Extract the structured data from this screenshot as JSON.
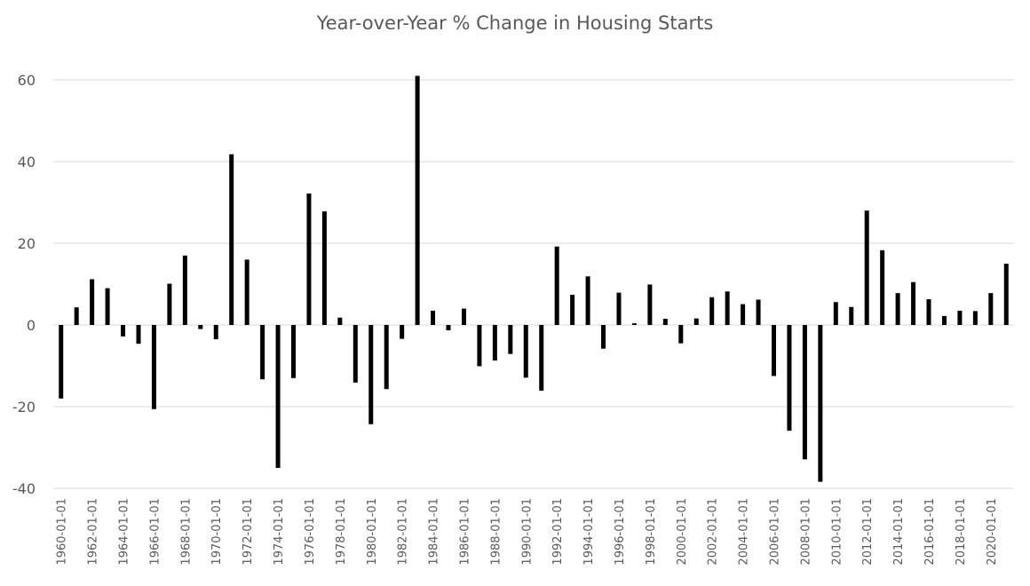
{
  "chart_data": {
    "type": "bar",
    "title": "Year-over-Year % Change in Housing Starts",
    "xlabel": "",
    "ylabel": "",
    "ylim": [
      -40,
      60
    ],
    "yticks": [
      "-40",
      "-20",
      "0",
      "20",
      "40",
      "60"
    ],
    "grid": true,
    "legend": "none",
    "bar_color": "#000000",
    "categories": [
      "1960-01-01",
      "1961-01-01",
      "1962-01-01",
      "1963-01-01",
      "1964-01-01",
      "1965-01-01",
      "1966-01-01",
      "1967-01-01",
      "1968-01-01",
      "1969-01-01",
      "1970-01-01",
      "1971-01-01",
      "1972-01-01",
      "1973-01-01",
      "1974-01-01",
      "1975-01-01",
      "1976-01-01",
      "1977-01-01",
      "1978-01-01",
      "1979-01-01",
      "1980-01-01",
      "1981-01-01",
      "1982-01-01",
      "1983-01-01",
      "1984-01-01",
      "1985-01-01",
      "1986-01-01",
      "1987-01-01",
      "1988-01-01",
      "1989-01-01",
      "1990-01-01",
      "1991-01-01",
      "1992-01-01",
      "1993-01-01",
      "1994-01-01",
      "1995-01-01",
      "1996-01-01",
      "1997-01-01",
      "1998-01-01",
      "1999-01-01",
      "2000-01-01",
      "2001-01-01",
      "2002-01-01",
      "2003-01-01",
      "2004-01-01",
      "2005-01-01",
      "2006-01-01",
      "2007-01-01",
      "2008-01-01",
      "2009-01-01",
      "2010-01-01",
      "2011-01-01",
      "2012-01-01",
      "2013-01-01",
      "2014-01-01",
      "2015-01-01",
      "2016-01-01",
      "2017-01-01",
      "2018-01-01",
      "2019-01-01",
      "2020-01-01",
      "2021-01-01"
    ],
    "x_tick_labels": [
      "1960-01-01",
      "1962-01-01",
      "1964-01-01",
      "1966-01-01",
      "1968-01-01",
      "1970-01-01",
      "1972-01-01",
      "1974-01-01",
      "1976-01-01",
      "1978-01-01",
      "1980-01-01",
      "1982-01-01",
      "1984-01-01",
      "1986-01-01",
      "1988-01-01",
      "1990-01-01",
      "1992-01-01",
      "1994-01-01",
      "1996-01-01",
      "1998-01-01",
      "2000-01-01",
      "2002-01-01",
      "2004-01-01",
      "2006-01-01",
      "2008-01-01",
      "2010-01-01",
      "2012-01-01",
      "2014-01-01",
      "2016-01-01",
      "2018-01-01",
      "2020-01-01"
    ],
    "values": [
      -18,
      4.3,
      11.2,
      9,
      -2.8,
      -4.6,
      -20.6,
      10.1,
      17,
      -1,
      -3.5,
      41.8,
      16,
      -13.3,
      -35,
      -13,
      32.2,
      27.8,
      1.8,
      -14.1,
      -24.3,
      -15.7,
      -3.4,
      61,
      3.5,
      -1.3,
      4,
      -10.1,
      -8.7,
      -7.1,
      -12.9,
      -16.1,
      19.2,
      7.4,
      11.9,
      -5.8,
      7.9,
      0.4,
      9.9,
      1.5,
      -4.5,
      1.6,
      6.8,
      8.2,
      5.1,
      6.2,
      -12.5,
      -25.9,
      -32.9,
      -38.4,
      5.6,
      4.4,
      28,
      18.3,
      7.8,
      10.5,
      6.3,
      2.2,
      3.5,
      3.4,
      7.8,
      15
    ]
  }
}
